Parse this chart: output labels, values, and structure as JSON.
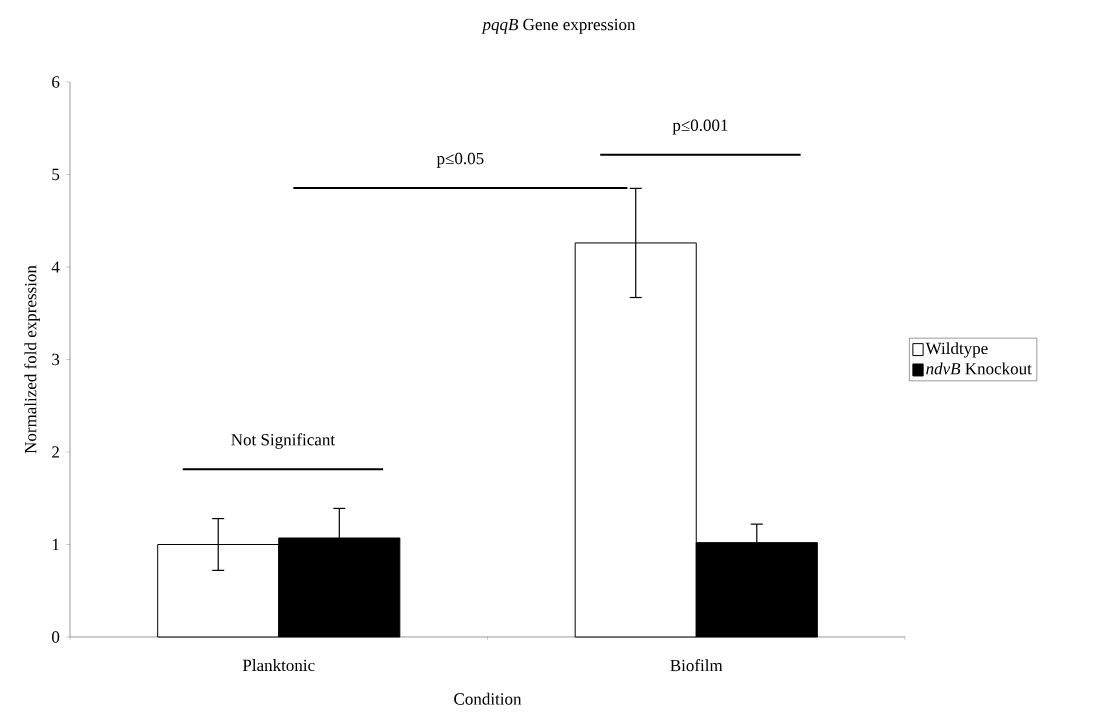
{
  "chart_data": {
    "type": "bar",
    "title": "*pqqB* Gene expression",
    "xlabel": "Condition",
    "ylabel": "Normalized fold expression",
    "categories": [
      "Planktonic",
      "Biofilm"
    ],
    "series": [
      {
        "name": "Wildtype",
        "color": "#ffffff",
        "values": [
          1.0,
          4.26
        ],
        "errors": [
          0.28,
          0.59
        ]
      },
      {
        "name": "*ndvB* Knockout",
        "color": "#000000",
        "values": [
          1.07,
          1.02
        ],
        "errors": [
          0.32,
          0.2
        ]
      }
    ],
    "ylim": [
      0,
      6
    ],
    "yticks": [
      0,
      1,
      2,
      3,
      4,
      5,
      6
    ],
    "legend": "right",
    "annotations": [
      "Not Significant",
      "p≤0.05",
      "p≤0.001"
    ]
  }
}
